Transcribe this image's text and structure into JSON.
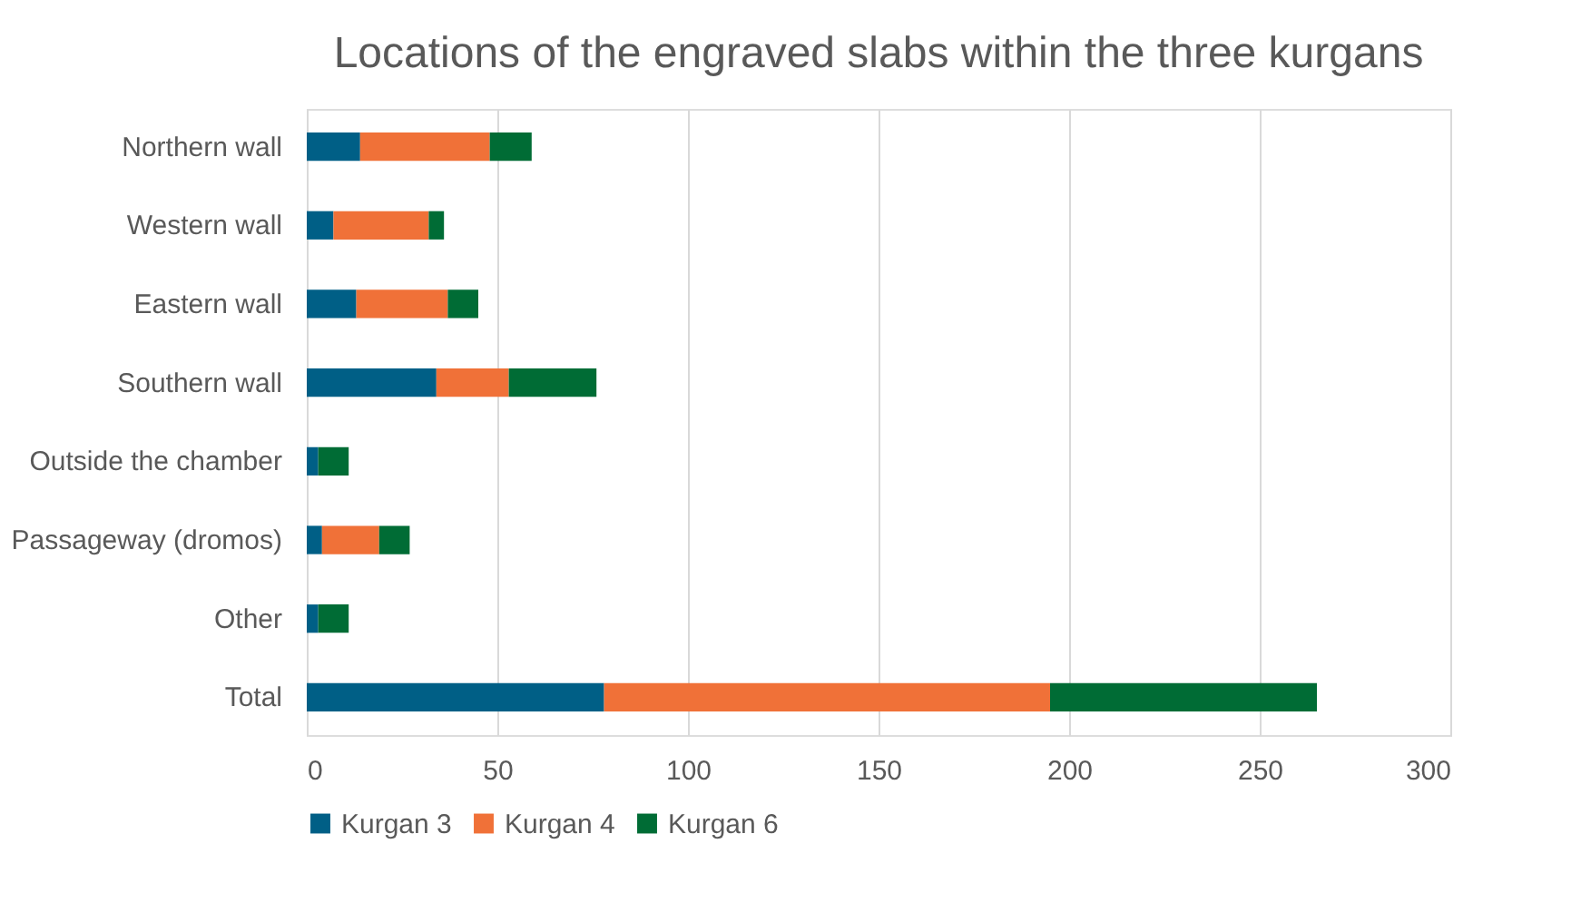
{
  "chart_data": {
    "type": "bar",
    "orientation": "horizontal",
    "stacked": true,
    "title": "Locations of the engraved slabs within the three kurgans",
    "categories": [
      "Northern wall",
      "Western wall",
      "Eastern wall",
      "Southern wall",
      "Outside the chamber",
      "Passageway (dromos)",
      "Other",
      "Total"
    ],
    "series": [
      {
        "name": "Kurgan 3",
        "color": "#005f86",
        "values": [
          14,
          7,
          13,
          34,
          3,
          4,
          3,
          78
        ]
      },
      {
        "name": "Kurgan 4",
        "color": "#f07138",
        "values": [
          34,
          25,
          24,
          19,
          0,
          15,
          0,
          117
        ]
      },
      {
        "name": "Kurgan 6",
        "color": "#006c35",
        "values": [
          11,
          4,
          8,
          23,
          8,
          8,
          8,
          70
        ]
      }
    ],
    "xlim": [
      0,
      300
    ],
    "xticks": [
      0,
      50,
      100,
      150,
      200,
      250,
      300
    ],
    "grid": "x",
    "legend": "bottom"
  }
}
